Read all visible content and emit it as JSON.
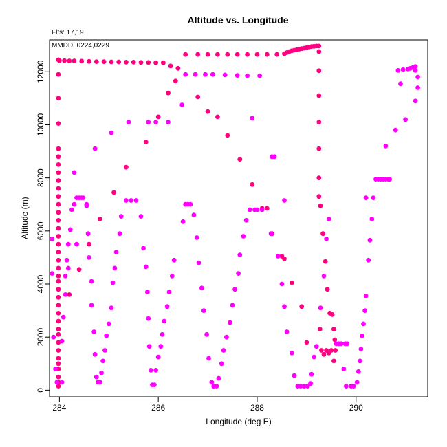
{
  "chart_data": {
    "type": "scatter",
    "title": "Altitude vs. Longitude",
    "xlabel": "Longitude (deg E)",
    "ylabel": "Altitude (m)",
    "annotations": {
      "flights": "Flts: 17,19",
      "dates": "MMDD: 0224,0229"
    },
    "xlim": [
      283.8,
      291.45
    ],
    "ylim": [
      -250,
      13200
    ],
    "xticks": [
      284,
      286,
      288,
      290
    ],
    "yticks": [
      0,
      2000,
      4000,
      6000,
      8000,
      10000,
      12000
    ],
    "grid": false,
    "colors": {
      "flight_17": "#ff0080",
      "flight_19": "#ff00ff"
    },
    "series": [
      {
        "key": "flight_17",
        "points": [
          [
            283.98,
            150
          ],
          [
            283.98,
            300
          ],
          [
            283.98,
            500
          ],
          [
            283.98,
            800
          ],
          [
            283.98,
            1000
          ],
          [
            283.98,
            1200
          ],
          [
            283.98,
            1500
          ],
          [
            283.98,
            1800
          ],
          [
            283.98,
            2100
          ],
          [
            283.98,
            2300
          ],
          [
            283.98,
            2600
          ],
          [
            283.98,
            2900
          ],
          [
            283.98,
            3200
          ],
          [
            283.98,
            3500
          ],
          [
            283.98,
            3800
          ],
          [
            283.98,
            4100
          ],
          [
            283.98,
            4300
          ],
          [
            283.98,
            4600
          ],
          [
            283.98,
            4900
          ],
          [
            283.98,
            5200
          ],
          [
            283.98,
            5500
          ],
          [
            283.98,
            5800
          ],
          [
            283.98,
            6100
          ],
          [
            283.98,
            6400
          ],
          [
            283.98,
            6700
          ],
          [
            283.98,
            7000
          ],
          [
            283.98,
            7300
          ],
          [
            283.98,
            7600
          ],
          [
            283.98,
            7900
          ],
          [
            283.98,
            8200
          ],
          [
            283.98,
            8500
          ],
          [
            283.98,
            8800
          ],
          [
            283.98,
            9100
          ],
          [
            283.98,
            10050
          ],
          [
            283.98,
            11000
          ],
          [
            283.98,
            11900
          ],
          [
            283.98,
            12450
          ],
          [
            284.0,
            12420
          ],
          [
            284.1,
            12420
          ],
          [
            284.2,
            12410
          ],
          [
            284.3,
            12410
          ],
          [
            284.45,
            12400
          ],
          [
            284.6,
            12390
          ],
          [
            284.75,
            12380
          ],
          [
            284.9,
            12380
          ],
          [
            285.05,
            12370
          ],
          [
            285.2,
            12370
          ],
          [
            285.35,
            12360
          ],
          [
            285.5,
            12360
          ],
          [
            285.65,
            12350
          ],
          [
            285.8,
            12350
          ],
          [
            285.95,
            12340
          ],
          [
            286.1,
            12340
          ],
          [
            286.25,
            12220
          ],
          [
            286.4,
            12130
          ],
          [
            286.55,
            12650
          ],
          [
            286.8,
            12650
          ],
          [
            287.0,
            12650
          ],
          [
            287.2,
            12650
          ],
          [
            287.4,
            12650
          ],
          [
            287.6,
            12650
          ],
          [
            287.8,
            12650
          ],
          [
            288.0,
            12650
          ],
          [
            288.2,
            12650
          ],
          [
            288.4,
            12650
          ],
          [
            288.55,
            12680
          ],
          [
            288.6,
            12720
          ],
          [
            288.65,
            12760
          ],
          [
            288.7,
            12790
          ],
          [
            288.75,
            12810
          ],
          [
            288.8,
            12830
          ],
          [
            288.85,
            12850
          ],
          [
            288.9,
            12870
          ],
          [
            288.95,
            12890
          ],
          [
            289.0,
            12910
          ],
          [
            289.05,
            12930
          ],
          [
            289.1,
            12950
          ],
          [
            289.15,
            12960
          ],
          [
            289.2,
            12970
          ],
          [
            289.25,
            12970
          ],
          [
            289.25,
            12760
          ],
          [
            289.25,
            12040
          ],
          [
            289.25,
            11100
          ],
          [
            289.25,
            10100
          ],
          [
            289.25,
            9100
          ],
          [
            289.25,
            8000
          ],
          [
            289.25,
            7300
          ],
          [
            289.28,
            6950
          ],
          [
            289.33,
            5900
          ],
          [
            289.38,
            4850
          ],
          [
            289.42,
            3800
          ],
          [
            289.47,
            2900
          ],
          [
            289.52,
            2850
          ],
          [
            289.55,
            2300
          ],
          [
            289.57,
            1900
          ],
          [
            289.58,
            1500
          ],
          [
            289.55,
            1100
          ],
          [
            289.5,
            1500
          ],
          [
            289.45,
            1400
          ],
          [
            289.4,
            1500
          ],
          [
            289.35,
            1350
          ],
          [
            289.3,
            1500
          ],
          [
            289.27,
            2300
          ],
          [
            289.0,
            1800
          ],
          [
            288.9,
            3150
          ],
          [
            288.7,
            4050
          ],
          [
            288.55,
            4950
          ],
          [
            288.5,
            5050
          ],
          [
            288.3,
            5900
          ],
          [
            288.2,
            6850
          ],
          [
            288.1,
            6850
          ],
          [
            287.9,
            7750
          ],
          [
            287.65,
            8700
          ],
          [
            287.4,
            9600
          ],
          [
            287.2,
            10300
          ],
          [
            287.0,
            10500
          ],
          [
            286.8,
            11050
          ],
          [
            286.35,
            11650
          ],
          [
            286.2,
            11200
          ],
          [
            286.0,
            10300
          ],
          [
            285.75,
            9350
          ],
          [
            285.35,
            8400
          ],
          [
            285.1,
            7450
          ],
          [
            284.82,
            6450
          ],
          [
            284.6,
            5500
          ],
          [
            284.4,
            4550
          ],
          [
            284.2,
            3600
          ]
        ]
      },
      {
        "key": "flight_19",
        "points": [
          [
            283.85,
            5700
          ],
          [
            283.85,
            4400
          ],
          [
            283.88,
            2000
          ],
          [
            283.92,
            800
          ],
          [
            283.95,
            300
          ],
          [
            284.05,
            300
          ],
          [
            284.05,
            1850
          ],
          [
            284.08,
            2750
          ],
          [
            284.12,
            3600
          ],
          [
            284.12,
            4300
          ],
          [
            284.15,
            4900
          ],
          [
            284.18,
            5500
          ],
          [
            284.22,
            6050
          ],
          [
            284.25,
            6800
          ],
          [
            284.3,
            7000
          ],
          [
            284.35,
            7250
          ],
          [
            284.4,
            7250
          ],
          [
            284.45,
            7250
          ],
          [
            284.48,
            7250
          ],
          [
            284.3,
            8200
          ],
          [
            284.55,
            6950
          ],
          [
            284.58,
            5900
          ],
          [
            284.6,
            5000
          ],
          [
            284.65,
            4100
          ],
          [
            284.65,
            3200
          ],
          [
            284.7,
            2200
          ],
          [
            284.72,
            1350
          ],
          [
            284.75,
            500
          ],
          [
            284.78,
            300
          ],
          [
            284.82,
            300
          ],
          [
            284.85,
            650
          ],
          [
            284.88,
            1100
          ],
          [
            284.92,
            1500
          ],
          [
            284.95,
            2050
          ],
          [
            285.0,
            2500
          ],
          [
            285.05,
            3100
          ],
          [
            285.08,
            4050
          ],
          [
            285.12,
            4600
          ],
          [
            285.15,
            5200
          ],
          [
            285.22,
            5900
          ],
          [
            285.25,
            6550
          ],
          [
            285.35,
            7150
          ],
          [
            285.45,
            7150
          ],
          [
            285.55,
            7150
          ],
          [
            285.65,
            6550
          ],
          [
            285.7,
            5350
          ],
          [
            285.75,
            4650
          ],
          [
            285.78,
            3700
          ],
          [
            285.8,
            2700
          ],
          [
            285.82,
            1650
          ],
          [
            285.85,
            750
          ],
          [
            285.88,
            200
          ],
          [
            285.92,
            200
          ],
          [
            285.95,
            750
          ],
          [
            286.0,
            1250
          ],
          [
            286.05,
            1650
          ],
          [
            286.08,
            2100
          ],
          [
            286.12,
            2600
          ],
          [
            286.18,
            3150
          ],
          [
            286.22,
            3700
          ],
          [
            286.28,
            4300
          ],
          [
            286.32,
            4900
          ],
          [
            286.5,
            6350
          ],
          [
            286.55,
            7000
          ],
          [
            286.6,
            7000
          ],
          [
            286.65,
            7000
          ],
          [
            286.72,
            6600
          ],
          [
            286.78,
            5750
          ],
          [
            286.82,
            4800
          ],
          [
            286.88,
            3850
          ],
          [
            286.92,
            3000
          ],
          [
            286.98,
            2100
          ],
          [
            287.02,
            1200
          ],
          [
            287.08,
            300
          ],
          [
            287.12,
            150
          ],
          [
            287.18,
            150
          ],
          [
            287.22,
            450
          ],
          [
            287.28,
            1000
          ],
          [
            287.32,
            1500
          ],
          [
            287.38,
            2000
          ],
          [
            287.45,
            2550
          ],
          [
            287.5,
            3200
          ],
          [
            287.55,
            3800
          ],
          [
            287.62,
            4400
          ],
          [
            287.65,
            5100
          ],
          [
            287.72,
            5800
          ],
          [
            287.78,
            6400
          ],
          [
            287.85,
            6800
          ],
          [
            287.95,
            6800
          ],
          [
            288.0,
            6800
          ],
          [
            288.1,
            6800
          ],
          [
            287.9,
            10250
          ],
          [
            288.3,
            8800
          ],
          [
            288.5,
            4000
          ],
          [
            288.55,
            3150
          ],
          [
            288.6,
            2200
          ],
          [
            288.7,
            1400
          ],
          [
            288.75,
            550
          ],
          [
            288.82,
            150
          ],
          [
            288.88,
            150
          ],
          [
            288.95,
            150
          ],
          [
            289.02,
            150
          ],
          [
            289.08,
            250
          ],
          [
            289.1,
            600
          ],
          [
            289.15,
            1250
          ],
          [
            289.2,
            1650
          ],
          [
            289.28,
            3100
          ],
          [
            289.35,
            4300
          ],
          [
            289.4,
            5700
          ],
          [
            289.45,
            6450
          ],
          [
            289.6,
            1750
          ],
          [
            289.65,
            1750
          ],
          [
            289.7,
            1750
          ],
          [
            289.78,
            1750
          ],
          [
            289.82,
            1750
          ],
          [
            289.75,
            800
          ],
          [
            289.8,
            150
          ],
          [
            289.9,
            150
          ],
          [
            289.95,
            150
          ],
          [
            290.02,
            300
          ],
          [
            290.05,
            700
          ],
          [
            290.08,
            1100
          ],
          [
            290.1,
            1550
          ],
          [
            290.12,
            2050
          ],
          [
            290.15,
            2500
          ],
          [
            290.18,
            3000
          ],
          [
            290.2,
            3550
          ],
          [
            290.25,
            4900
          ],
          [
            290.28,
            5650
          ],
          [
            290.32,
            6450
          ],
          [
            290.35,
            7250
          ],
          [
            290.2,
            7250
          ],
          [
            290.4,
            7950
          ],
          [
            290.45,
            7950
          ],
          [
            290.5,
            7950
          ],
          [
            290.55,
            7950
          ],
          [
            290.6,
            7950
          ],
          [
            290.65,
            7950
          ],
          [
            290.68,
            7950
          ],
          [
            290.6,
            9200
          ],
          [
            290.8,
            9800
          ],
          [
            291.0,
            10200
          ],
          [
            291.2,
            10900
          ],
          [
            291.25,
            11400
          ],
          [
            291.25,
            11800
          ],
          [
            291.2,
            12050
          ],
          [
            290.9,
            11550
          ],
          [
            290.85,
            12050
          ],
          [
            290.95,
            12080
          ],
          [
            291.05,
            12100
          ],
          [
            291.1,
            12130
          ],
          [
            291.15,
            12160
          ],
          [
            291.2,
            12200
          ],
          [
            286.55,
            11900
          ],
          [
            286.75,
            11900
          ],
          [
            286.95,
            11900
          ],
          [
            287.1,
            11900
          ],
          [
            287.35,
            11880
          ],
          [
            287.6,
            11860
          ],
          [
            287.8,
            11850
          ],
          [
            288.05,
            11850
          ],
          [
            288.35,
            8800
          ],
          [
            288.55,
            7150
          ],
          [
            288.42,
            5050
          ],
          [
            288.28,
            5900
          ],
          [
            285.05,
            9700
          ],
          [
            285.4,
            10100
          ],
          [
            285.8,
            10100
          ],
          [
            285.95,
            10100
          ],
          [
            286.2,
            10100
          ],
          [
            286.48,
            10750
          ],
          [
            284.72,
            9100
          ],
          [
            284.55,
            7000
          ],
          [
            284.35,
            5500
          ],
          [
            284.18,
            4600
          ]
        ]
      }
    ]
  }
}
